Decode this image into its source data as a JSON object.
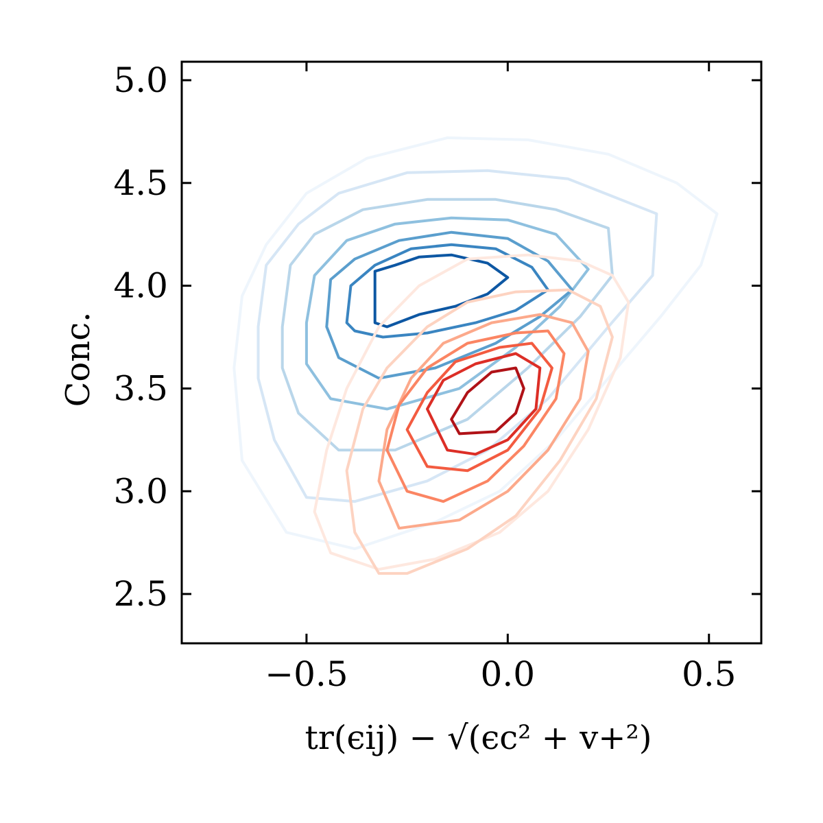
{
  "chart_data": {
    "type": "contour",
    "xlabel": "tr(ϵij) − √(ϵc² + v+²)",
    "ylabel": "Conc.",
    "xlim": [
      -0.81,
      0.63
    ],
    "ylim": [
      2.26,
      5.09
    ],
    "xticks": [
      -0.5,
      0.0,
      0.5
    ],
    "xtick_labels": [
      "−0.5",
      "0.0",
      "0.5"
    ],
    "yticks": [
      2.5,
      3.0,
      3.5,
      4.0,
      4.5,
      5.0
    ],
    "ytick_labels": [
      "2.5",
      "3.0",
      "3.5",
      "4.0",
      "4.5",
      "5.0"
    ],
    "grid": false,
    "series": [
      {
        "colormap": "Blues",
        "levels": [
          {
            "color": "#eef5fc",
            "points": [
              [
                -0.68,
                3.6
              ],
              [
                -0.66,
                3.95
              ],
              [
                -0.6,
                4.2
              ],
              [
                -0.5,
                4.45
              ],
              [
                -0.35,
                4.62
              ],
              [
                -0.15,
                4.72
              ],
              [
                0.05,
                4.71
              ],
              [
                0.25,
                4.64
              ],
              [
                0.42,
                4.5
              ],
              [
                0.52,
                4.35
              ],
              [
                0.48,
                4.1
              ],
              [
                0.38,
                3.85
              ],
              [
                0.25,
                3.55
              ],
              [
                0.12,
                3.25
              ],
              [
                -0.02,
                3.0
              ],
              [
                -0.18,
                2.85
              ],
              [
                -0.38,
                2.72
              ],
              [
                -0.55,
                2.8
              ],
              [
                -0.66,
                3.15
              ],
              [
                -0.68,
                3.6
              ]
            ]
          },
          {
            "color": "#d6e6f5",
            "points": [
              [
                -0.62,
                3.8
              ],
              [
                -0.6,
                4.1
              ],
              [
                -0.52,
                4.3
              ],
              [
                -0.42,
                4.45
              ],
              [
                -0.25,
                4.55
              ],
              [
                -0.05,
                4.56
              ],
              [
                0.15,
                4.52
              ],
              [
                0.28,
                4.42
              ],
              [
                0.37,
                4.35
              ],
              [
                0.36,
                4.05
              ],
              [
                0.25,
                3.8
              ],
              [
                0.1,
                3.45
              ],
              [
                -0.05,
                3.2
              ],
              [
                -0.2,
                3.05
              ],
              [
                -0.38,
                2.95
              ],
              [
                -0.5,
                2.97
              ],
              [
                -0.58,
                3.25
              ],
              [
                -0.62,
                3.55
              ],
              [
                -0.62,
                3.8
              ]
            ]
          },
          {
            "color": "#b9d6ea",
            "points": [
              [
                -0.56,
                3.8
              ],
              [
                -0.54,
                4.1
              ],
              [
                -0.48,
                4.25
              ],
              [
                -0.36,
                4.37
              ],
              [
                -0.2,
                4.42
              ],
              [
                -0.03,
                4.42
              ],
              [
                0.12,
                4.37
              ],
              [
                0.25,
                4.28
              ],
              [
                0.26,
                4.05
              ],
              [
                0.18,
                3.85
              ],
              [
                0.05,
                3.6
              ],
              [
                -0.1,
                3.35
              ],
              [
                -0.28,
                3.2
              ],
              [
                -0.42,
                3.2
              ],
              [
                -0.52,
                3.38
              ],
              [
                -0.56,
                3.6
              ],
              [
                -0.56,
                3.8
              ]
            ]
          },
          {
            "color": "#8ec0df",
            "points": [
              [
                -0.5,
                3.82
              ],
              [
                -0.48,
                4.05
              ],
              [
                -0.4,
                4.22
              ],
              [
                -0.28,
                4.3
              ],
              [
                -0.14,
                4.33
              ],
              [
                0.0,
                4.32
              ],
              [
                0.12,
                4.25
              ],
              [
                0.2,
                4.08
              ],
              [
                0.13,
                3.9
              ],
              [
                0.02,
                3.7
              ],
              [
                -0.12,
                3.5
              ],
              [
                -0.3,
                3.4
              ],
              [
                -0.44,
                3.45
              ],
              [
                -0.5,
                3.62
              ],
              [
                -0.5,
                3.82
              ]
            ]
          },
          {
            "color": "#5a9ecd",
            "points": [
              [
                -0.45,
                3.8
              ],
              [
                -0.44,
                4.03
              ],
              [
                -0.38,
                4.13
              ],
              [
                -0.27,
                4.22
              ],
              [
                -0.14,
                4.26
              ],
              [
                0.0,
                4.23
              ],
              [
                0.1,
                4.12
              ],
              [
                0.16,
                3.98
              ],
              [
                0.08,
                3.85
              ],
              [
                -0.03,
                3.72
              ],
              [
                -0.18,
                3.6
              ],
              [
                -0.32,
                3.55
              ],
              [
                -0.42,
                3.65
              ],
              [
                -0.45,
                3.8
              ]
            ]
          },
          {
            "color": "#3a85c1",
            "points": [
              [
                -0.4,
                3.82
              ],
              [
                -0.39,
                4.0
              ],
              [
                -0.33,
                4.1
              ],
              [
                -0.24,
                4.18
              ],
              [
                -0.14,
                4.2
              ],
              [
                -0.03,
                4.18
              ],
              [
                0.06,
                4.09
              ],
              [
                0.1,
                3.98
              ],
              [
                0.02,
                3.88
              ],
              [
                -0.08,
                3.82
              ],
              [
                -0.2,
                3.77
              ],
              [
                -0.31,
                3.75
              ],
              [
                -0.38,
                3.78
              ],
              [
                -0.4,
                3.82
              ]
            ]
          },
          {
            "color": "#0d57a3",
            "points": [
              [
                -0.33,
                3.82
              ],
              [
                -0.33,
                4.07
              ],
              [
                -0.28,
                4.1
              ],
              [
                -0.22,
                4.14
              ],
              [
                -0.14,
                4.15
              ],
              [
                -0.05,
                4.11
              ],
              [
                0.0,
                4.04
              ],
              [
                -0.05,
                3.96
              ],
              [
                -0.13,
                3.9
              ],
              [
                -0.22,
                3.86
              ],
              [
                -0.3,
                3.8
              ],
              [
                -0.33,
                3.82
              ]
            ]
          }
        ]
      },
      {
        "colormap": "Reds",
        "levels": [
          {
            "color": "#fee8df",
            "points": [
              [
                -0.44,
                2.7
              ],
              [
                -0.48,
                2.9
              ],
              [
                -0.45,
                3.2
              ],
              [
                -0.4,
                3.5
              ],
              [
                -0.32,
                3.8
              ],
              [
                -0.22,
                4.0
              ],
              [
                -0.1,
                4.13
              ],
              [
                0.05,
                4.15
              ],
              [
                0.18,
                4.12
              ],
              [
                0.26,
                4.05
              ],
              [
                0.3,
                3.92
              ],
              [
                0.28,
                3.65
              ],
              [
                0.2,
                3.3
              ],
              [
                0.1,
                3.0
              ],
              [
                -0.02,
                2.8
              ],
              [
                -0.18,
                2.67
              ],
              [
                -0.32,
                2.62
              ],
              [
                -0.44,
                2.7
              ]
            ]
          },
          {
            "color": "#fdd3c1",
            "points": [
              [
                -0.32,
                2.6
              ],
              [
                -0.38,
                2.8
              ],
              [
                -0.4,
                3.1
              ],
              [
                -0.36,
                3.4
              ],
              [
                -0.3,
                3.6
              ],
              [
                -0.2,
                3.8
              ],
              [
                -0.1,
                3.92
              ],
              [
                0.02,
                3.97
              ],
              [
                0.15,
                3.98
              ],
              [
                0.23,
                3.9
              ],
              [
                0.26,
                3.75
              ],
              [
                0.22,
                3.45
              ],
              [
                0.13,
                3.15
              ],
              [
                0.02,
                2.88
              ],
              [
                -0.1,
                2.72
              ],
              [
                -0.25,
                2.6
              ],
              [
                -0.32,
                2.6
              ]
            ]
          },
          {
            "color": "#fca98b",
            "points": [
              [
                -0.27,
                2.82
              ],
              [
                -0.32,
                3.05
              ],
              [
                -0.3,
                3.3
              ],
              [
                -0.24,
                3.55
              ],
              [
                -0.16,
                3.72
              ],
              [
                -0.04,
                3.82
              ],
              [
                0.08,
                3.86
              ],
              [
                0.16,
                3.82
              ],
              [
                0.2,
                3.68
              ],
              [
                0.18,
                3.45
              ],
              [
                0.1,
                3.2
              ],
              [
                0.0,
                3.0
              ],
              [
                -0.12,
                2.86
              ],
              [
                -0.27,
                2.82
              ]
            ]
          },
          {
            "color": "#fb8563",
            "points": [
              [
                -0.25,
                3.0
              ],
              [
                -0.3,
                3.2
              ],
              [
                -0.27,
                3.42
              ],
              [
                -0.2,
                3.6
              ],
              [
                -0.1,
                3.72
              ],
              [
                0.02,
                3.77
              ],
              [
                0.1,
                3.78
              ],
              [
                0.14,
                3.67
              ],
              [
                0.12,
                3.45
              ],
              [
                0.04,
                3.22
              ],
              [
                -0.05,
                3.05
              ],
              [
                -0.16,
                2.95
              ],
              [
                -0.25,
                3.0
              ]
            ]
          },
          {
            "color": "#f35b40",
            "points": [
              [
                -0.2,
                3.12
              ],
              [
                -0.25,
                3.3
              ],
              [
                -0.2,
                3.48
              ],
              [
                -0.13,
                3.63
              ],
              [
                -0.02,
                3.7
              ],
              [
                0.06,
                3.72
              ],
              [
                0.11,
                3.6
              ],
              [
                0.08,
                3.4
              ],
              [
                0.0,
                3.2
              ],
              [
                -0.1,
                3.1
              ],
              [
                -0.2,
                3.12
              ]
            ]
          },
          {
            "color": "#dc2e26",
            "points": [
              [
                -0.15,
                3.2
              ],
              [
                -0.2,
                3.4
              ],
              [
                -0.16,
                3.54
              ],
              [
                -0.08,
                3.62
              ],
              [
                0.02,
                3.67
              ],
              [
                0.08,
                3.6
              ],
              [
                0.07,
                3.4
              ],
              [
                0.0,
                3.25
              ],
              [
                -0.08,
                3.18
              ],
              [
                -0.15,
                3.2
              ]
            ]
          },
          {
            "color": "#b01217",
            "points": [
              [
                -0.12,
                3.28
              ],
              [
                -0.14,
                3.35
              ],
              [
                -0.1,
                3.48
              ],
              [
                -0.04,
                3.58
              ],
              [
                0.02,
                3.6
              ],
              [
                0.04,
                3.5
              ],
              [
                0.02,
                3.38
              ],
              [
                -0.03,
                3.29
              ],
              [
                -0.12,
                3.28
              ]
            ]
          }
        ]
      }
    ]
  }
}
